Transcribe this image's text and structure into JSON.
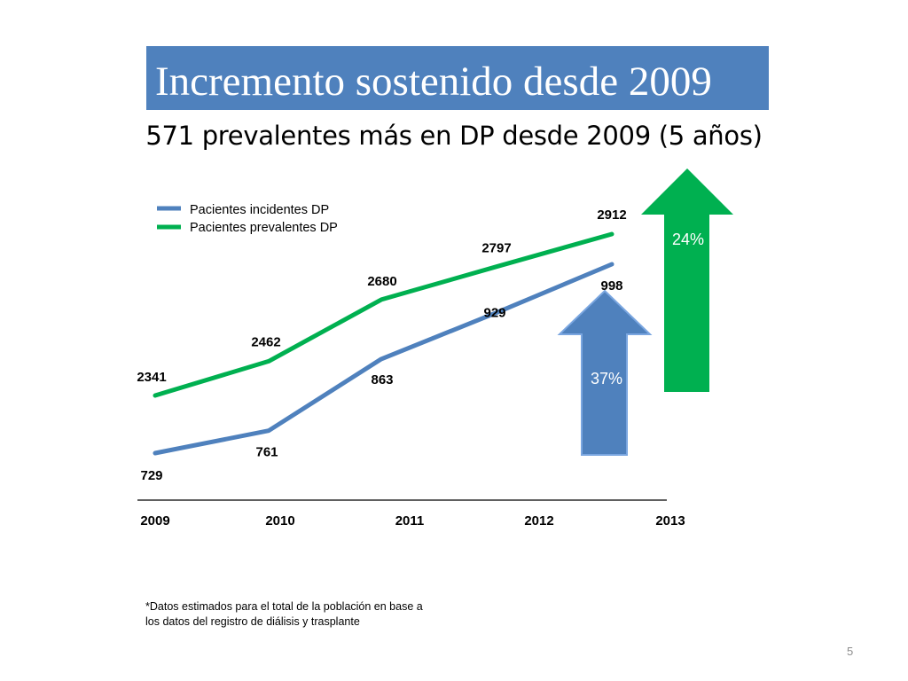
{
  "slide": {
    "title": "Incremento sostenido desde 2009",
    "subtitle": "571 prevalentes más en DP desde 2009 (5 años)",
    "footnote_line1": "*Datos estimados para el total de la población en base a",
    "footnote_line2": "los datos del registro de diálisis y trasplante",
    "page_number": "5"
  },
  "colors": {
    "title_bg": "#4f81bd",
    "incidentes": "#4f81bd",
    "prevalentes": "#00b050",
    "arrow_blue": "#4f81bd",
    "arrow_green": "#00b050"
  },
  "chart_data": {
    "type": "line",
    "categories": [
      "2009",
      "2010",
      "2011",
      "2012",
      "2013"
    ],
    "series": [
      {
        "name": "Pacientes incidentes DP",
        "values": [
          729,
          761,
          863,
          929,
          998
        ],
        "labels": [
          "729",
          "761",
          "863",
          "929",
          "998"
        ]
      },
      {
        "name": "Pacientes prevalentes DP",
        "values": [
          2341,
          2462,
          2680,
          2797,
          2912
        ],
        "labels": [
          "2341",
          "2462",
          "2680",
          "2797",
          "2912"
        ]
      }
    ],
    "legend_position": "top-left",
    "grid": false,
    "annotations": [
      {
        "type": "arrow",
        "series": "Pacientes incidentes DP",
        "text": "37%"
      },
      {
        "type": "arrow",
        "series": "Pacientes prevalentes DP",
        "text": "24%"
      }
    ]
  }
}
